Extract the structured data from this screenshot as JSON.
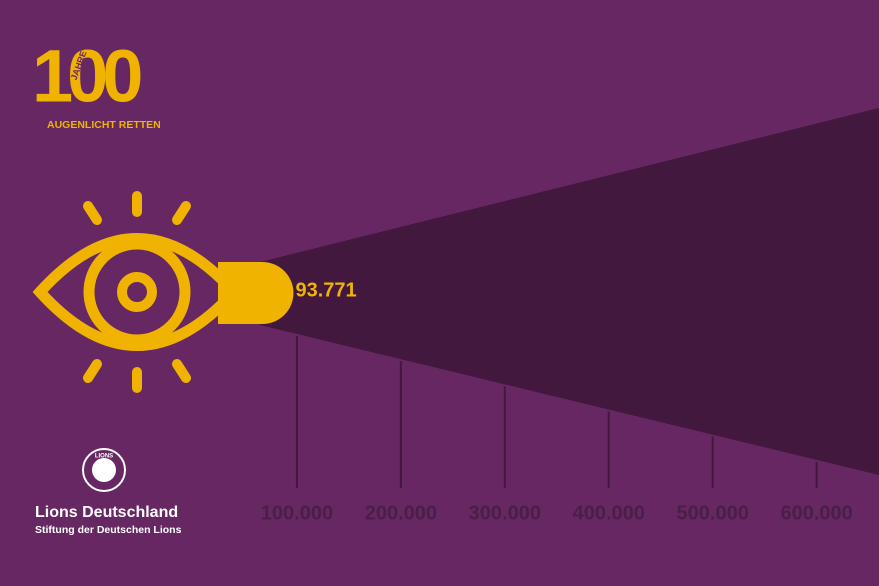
{
  "logo": {
    "number": "100",
    "years": "JAHRE",
    "tagline": "AUGENLICHT RETTEN"
  },
  "chart_data": {
    "type": "bar",
    "values": [
      93771
    ],
    "value_labels": [
      "93.771"
    ],
    "color": "#f0b400",
    "xlim": [
      0,
      660000
    ],
    "xticks": [
      {
        "value": 100000,
        "label": "100.000"
      },
      {
        "value": 200000,
        "label": "200.000"
      },
      {
        "value": 300000,
        "label": "300.000"
      },
      {
        "value": 400000,
        "label": "400.000"
      },
      {
        "value": 500000,
        "label": "500.000"
      },
      {
        "value": 600000,
        "label": "600.000"
      }
    ]
  },
  "footer": {
    "emblem": "LIONS",
    "org": "Lions Deutschland",
    "subtitle": "Stiftung der Deutschen Lions"
  }
}
